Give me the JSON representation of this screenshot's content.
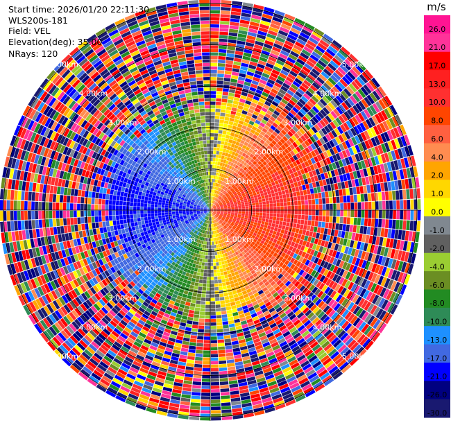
{
  "header": {
    "start_time": "Start time: 2026/01/20 22:11:30",
    "instrument": "WLS200s-181",
    "field": "Field: VEL",
    "elevation": "Elevation(deg): 35.00",
    "nrays": "NRays: 120"
  },
  "chart_data": {
    "type": "heatmap",
    "title": "",
    "field": "VEL",
    "units": "m/s",
    "nrays": 120,
    "elevation_deg": 35.0,
    "range_rings_km": [
      1.0,
      2.0,
      3.0,
      4.0,
      5.0
    ],
    "ring_labels": [
      "1.00km",
      "2.00km",
      "3.00km",
      "4.00km",
      "5.00km"
    ],
    "max_range_km": 5.1,
    "colorbar": {
      "ticks": [
        "26.0",
        "21.0",
        "17.0",
        "13.0",
        "10.0",
        "8.0",
        "6.0",
        "4.0",
        "2.0",
        "1.0",
        "0.0",
        "-1.0",
        "-2.0",
        "-4.0",
        "-6.0",
        "-8.0",
        "-10.0",
        "-13.0",
        "-17.0",
        "-21.0",
        "-26.0",
        "-30.0"
      ],
      "colors": [
        "#ff1493",
        "#ff3399",
        "#ff0000",
        "#ff2020",
        "#ff3030",
        "#ff4500",
        "#ff6040",
        "#ff8c50",
        "#ffa500",
        "#ffd700",
        "#ffff00",
        "#808890",
        "#606060",
        "#9acd32",
        "#6b8e23",
        "#228b22",
        "#2e8b57",
        "#1e90ff",
        "#4169e1",
        "#0000ff",
        "#000080",
        "#191970"
      ]
    },
    "velocity_field": {
      "description_only": false,
      "positive_direction_deg": 90,
      "amplitude_ms": 14,
      "noise_start_km": 2.6
    }
  }
}
